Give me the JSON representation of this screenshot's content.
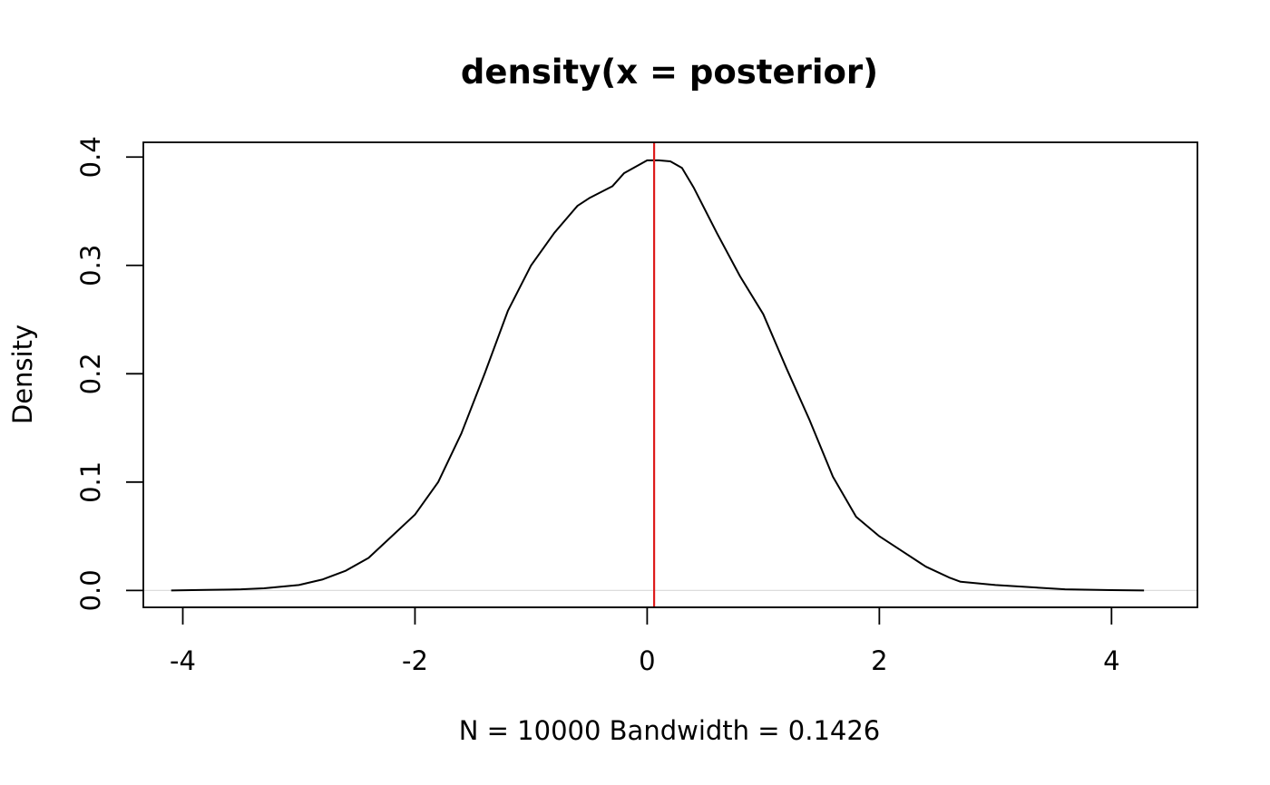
{
  "chart_data": {
    "type": "line",
    "title": "density(x = posterior)",
    "xlabel": "N = 10000   Bandwidth = 0.1426",
    "ylabel": "Density",
    "xlim": [
      -4.34,
      4.74
    ],
    "ylim": [
      -0.0156,
      0.4136
    ],
    "x_ticks": [
      -4,
      -2,
      0,
      2,
      4
    ],
    "x_tick_labels": [
      "-4",
      "-2",
      "0",
      "2",
      "4"
    ],
    "y_ticks": [
      0.0,
      0.1,
      0.2,
      0.3,
      0.4
    ],
    "y_tick_labels": [
      "0.0",
      "0.1",
      "0.2",
      "0.3",
      "0.4"
    ],
    "grid": false,
    "series": [
      {
        "color": "#000000",
        "x": [
          -4.1,
          -3.8,
          -3.5,
          -3.3,
          -3.0,
          -2.8,
          -2.6,
          -2.4,
          -2.2,
          -2.0,
          -1.8,
          -1.6,
          -1.4,
          -1.2,
          -1.0,
          -0.8,
          -0.6,
          -0.5,
          -0.3,
          -0.2,
          0.0,
          0.1,
          0.2,
          0.3,
          0.4,
          0.6,
          0.8,
          1.0,
          1.2,
          1.4,
          1.6,
          1.8,
          2.0,
          2.2,
          2.4,
          2.6,
          2.7,
          3.0,
          3.3,
          3.6,
          4.0,
          4.28
        ],
        "y": [
          0.0,
          0.0005,
          0.001,
          0.002,
          0.005,
          0.01,
          0.018,
          0.03,
          0.05,
          0.07,
          0.1,
          0.145,
          0.2,
          0.258,
          0.3,
          0.33,
          0.355,
          0.362,
          0.373,
          0.385,
          0.397,
          0.397,
          0.396,
          0.39,
          0.372,
          0.33,
          0.29,
          0.255,
          0.205,
          0.157,
          0.105,
          0.068,
          0.05,
          0.036,
          0.022,
          0.012,
          0.008,
          0.005,
          0.003,
          0.001,
          0.0003,
          0.0
        ]
      }
    ],
    "reference_line": {
      "x": 0.06,
      "color": "#dd1c1c"
    },
    "zero_line_color": "#dddddd"
  }
}
